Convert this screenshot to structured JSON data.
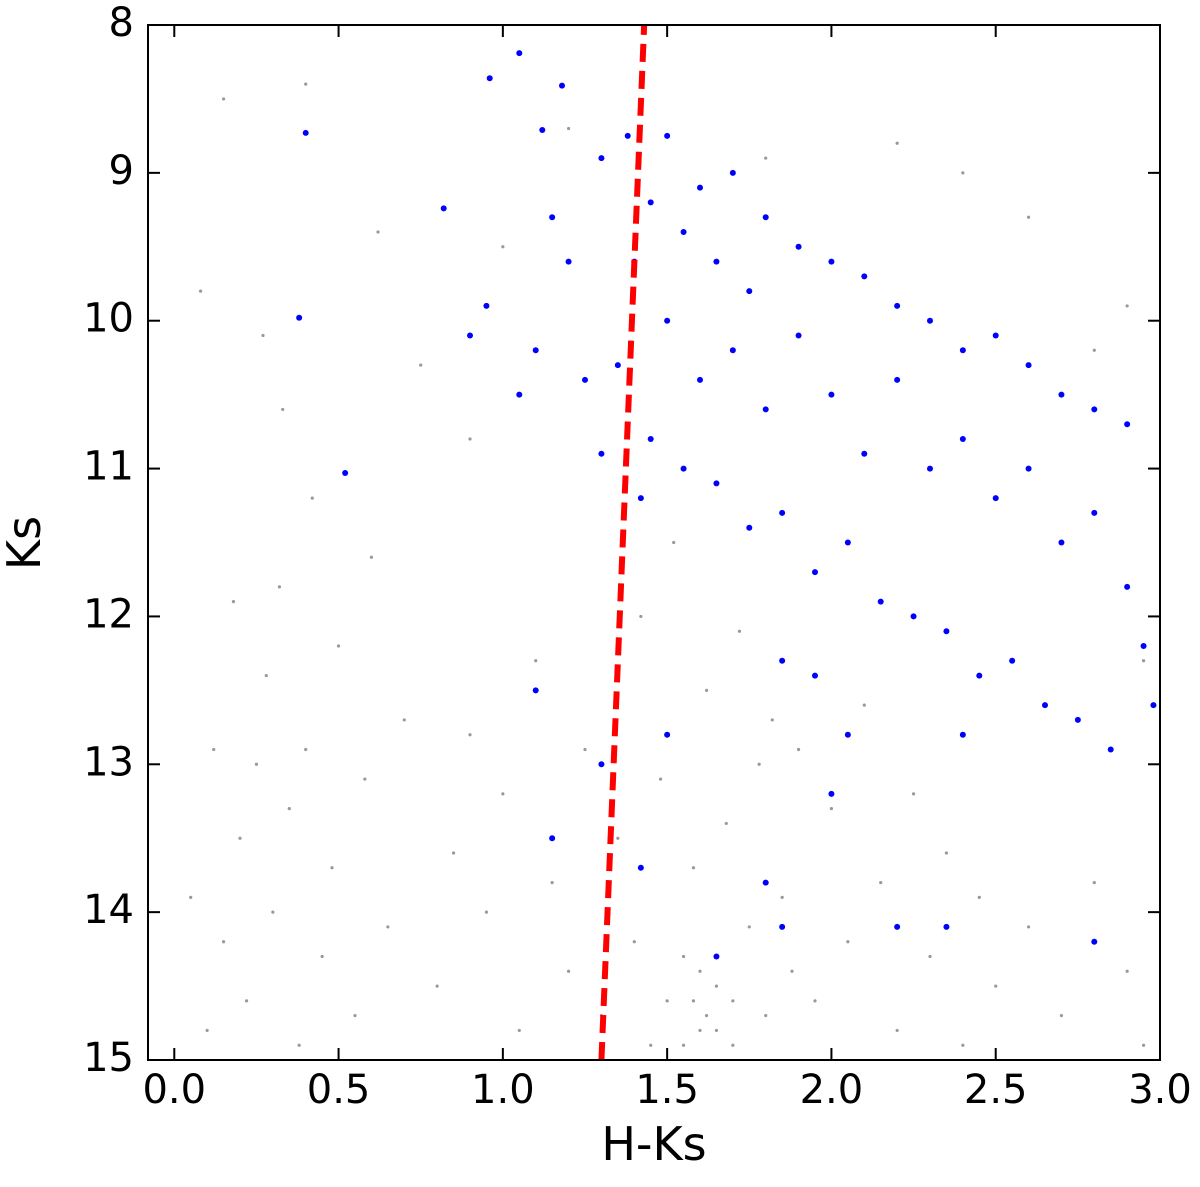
{
  "chart_data": {
    "type": "scatter",
    "xlabel": "H-Ks",
    "ylabel": "Ks",
    "xlim": [
      -0.08,
      3.0
    ],
    "ylim": [
      15,
      8
    ],
    "y_inverted": true,
    "xticks": [
      {
        "value": 0,
        "label": "0.0"
      },
      0.5,
      {
        "value": 1,
        "label": "1.0"
      },
      1.5,
      {
        "value": 2,
        "label": "2.0"
      },
      2.5,
      {
        "value": 3,
        "label": "3.0"
      }
    ],
    "yticks": [
      8,
      9,
      10,
      11,
      12,
      13,
      14,
      15
    ],
    "series": [
      {
        "color": "#555555",
        "mode": "points",
        "size": 1.6,
        "x": [
          0.1,
          0.15,
          0.2,
          0.22,
          0.25,
          0.28,
          0.3,
          0.32,
          0.35,
          0.38,
          0.4,
          0.42,
          0.45,
          0.48,
          0.5,
          0.55,
          0.58,
          0.6,
          0.65,
          0.7,
          0.05,
          0.12,
          0.18,
          0.27,
          0.33,
          0.08,
          0.15,
          0.4,
          0.62,
          0.75,
          0.8,
          0.85,
          0.9,
          0.95,
          1.0,
          1.05,
          1.1,
          1.15,
          1.2,
          1.25,
          1.3,
          1.35,
          1.4,
          1.42,
          1.45,
          1.48,
          1.5,
          1.52,
          1.55,
          1.58,
          1.6,
          1.62,
          1.65,
          1.68,
          1.7,
          1.72,
          1.75,
          1.78,
          1.8,
          1.82,
          1.85,
          1.88,
          1.9,
          1.95,
          2.0,
          2.05,
          2.1,
          2.15,
          2.2,
          2.25,
          2.3,
          2.35,
          2.4,
          2.45,
          2.5,
          2.6,
          2.7,
          2.8,
          2.9,
          2.95,
          1.55,
          1.6,
          1.65,
          1.58,
          1.62,
          1.7,
          1.8,
          2.2,
          2.6,
          2.9,
          2.4,
          1.0,
          0.9,
          2.8,
          1.2,
          2.95
        ],
        "values": [
          14.8,
          14.2,
          13.5,
          14.6,
          13.0,
          12.4,
          14.0,
          11.8,
          13.3,
          14.9,
          12.9,
          11.2,
          14.3,
          13.7,
          12.2,
          14.7,
          13.1,
          11.6,
          14.1,
          12.7,
          13.9,
          12.9,
          11.9,
          10.1,
          10.6,
          9.8,
          8.5,
          8.4,
          9.4,
          10.3,
          14.5,
          13.6,
          12.8,
          14.0,
          13.2,
          14.8,
          12.3,
          13.8,
          14.4,
          12.9,
          14.7,
          13.5,
          14.2,
          12.0,
          14.9,
          13.1,
          14.6,
          11.5,
          14.3,
          13.7,
          14.8,
          12.5,
          14.5,
          13.4,
          14.9,
          12.1,
          14.1,
          13.0,
          14.7,
          12.7,
          13.9,
          14.4,
          12.9,
          14.6,
          13.3,
          14.2,
          12.6,
          13.8,
          14.8,
          13.2,
          14.3,
          13.6,
          14.9,
          13.9,
          14.5,
          14.1,
          14.7,
          13.8,
          14.4,
          14.9,
          14.9,
          14.4,
          14.8,
          14.6,
          14.7,
          14.6,
          8.9,
          8.8,
          9.3,
          9.9,
          9.0,
          9.5,
          10.8,
          10.2,
          8.7,
          12.3
        ]
      },
      {
        "color": "#0000ff",
        "mode": "points",
        "size": 3,
        "x": [
          0.4,
          0.38,
          0.52,
          0.82,
          0.96,
          1.05,
          1.12,
          1.18,
          1.3,
          1.38,
          1.5,
          1.45,
          1.55,
          1.6,
          1.7,
          1.65,
          1.75,
          1.8,
          1.9,
          2.0,
          2.1,
          2.2,
          2.3,
          2.4,
          2.5,
          2.6,
          2.7,
          2.8,
          2.9,
          1.5,
          1.6,
          1.7,
          1.8,
          1.9,
          2.0,
          2.1,
          2.2,
          2.3,
          2.4,
          2.5,
          2.6,
          2.7,
          2.8,
          2.9,
          2.95,
          1.45,
          1.55,
          1.65,
          1.75,
          1.85,
          1.95,
          2.05,
          2.15,
          2.25,
          2.35,
          2.45,
          2.55,
          2.65,
          2.75,
          2.85,
          2.98,
          1.2,
          1.1,
          0.95,
          1.05,
          1.25,
          1.3,
          1.35,
          1.15,
          0.9,
          1.4,
          1.42,
          1.1,
          1.15,
          1.3,
          1.42,
          1.5,
          1.65,
          1.8,
          1.85,
          2.0,
          2.05,
          2.2,
          2.35,
          2.4,
          2.8,
          1.85,
          1.95
        ],
        "values": [
          8.73,
          9.98,
          11.03,
          9.24,
          8.36,
          8.19,
          8.71,
          8.41,
          8.9,
          8.75,
          8.75,
          9.2,
          9.4,
          9.1,
          9.0,
          9.6,
          9.8,
          9.3,
          9.5,
          9.6,
          9.7,
          9.9,
          10.0,
          10.2,
          10.1,
          10.3,
          10.5,
          10.6,
          10.7,
          10.0,
          10.4,
          10.2,
          10.6,
          10.1,
          10.5,
          10.9,
          10.4,
          11.0,
          10.8,
          11.2,
          11.0,
          11.5,
          11.3,
          11.8,
          12.2,
          10.8,
          11.0,
          11.1,
          11.4,
          11.3,
          11.7,
          11.5,
          11.9,
          12.0,
          12.1,
          12.4,
          12.3,
          12.6,
          12.7,
          12.9,
          12.6,
          9.6,
          10.2,
          9.9,
          10.5,
          10.4,
          10.9,
          10.3,
          9.3,
          10.1,
          9.6,
          11.2,
          12.5,
          13.5,
          13.0,
          13.7,
          12.8,
          14.3,
          13.8,
          14.1,
          13.2,
          12.8,
          14.1,
          14.1,
          12.8,
          14.2,
          12.3,
          12.4
        ]
      },
      {
        "color": "#ff0000",
        "mode": "line",
        "dash": true,
        "size": 6,
        "x": [
          1.3,
          1.43
        ],
        "values": [
          15,
          8
        ]
      }
    ]
  }
}
